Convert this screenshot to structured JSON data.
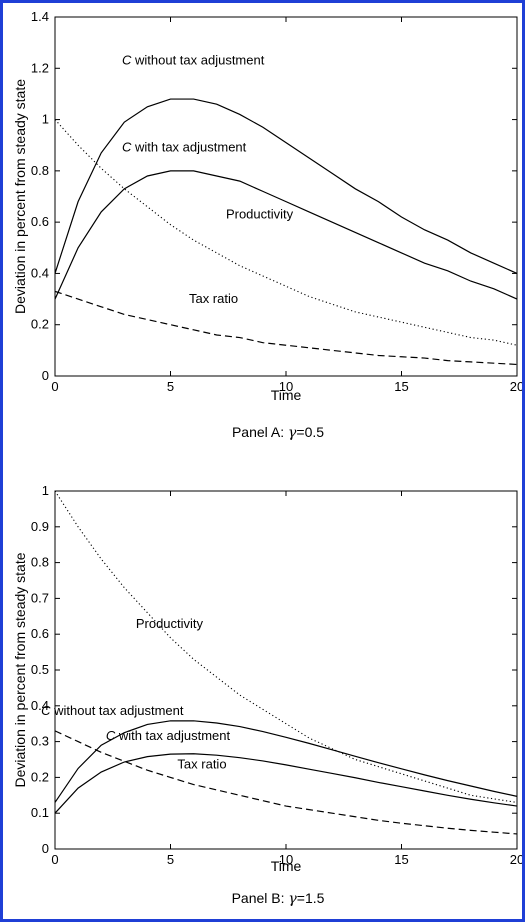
{
  "colors": {
    "frame": "#1f3fd6",
    "line": "#000000",
    "background": "#ffffff"
  },
  "chart_data": [
    {
      "type": "line",
      "panel_label_prefix": "Panel A: ",
      "panel_label_symbol": "γ",
      "panel_label_value": "=0.5",
      "xlabel": "Time",
      "ylabel": "Deviation in percent from steady state",
      "xlim": [
        0,
        20
      ],
      "ylim": [
        0,
        1.4
      ],
      "xticks": [
        0,
        5,
        10,
        15,
        20
      ],
      "yticks": [
        0,
        0.2,
        0.4,
        0.6,
        0.8,
        1,
        1.2,
        1.4
      ],
      "grid": false,
      "x": [
        0,
        1,
        2,
        3,
        4,
        5,
        6,
        7,
        8,
        9,
        10,
        11,
        12,
        13,
        14,
        15,
        16,
        17,
        18,
        19,
        20
      ],
      "series": [
        {
          "id": "c-without",
          "style": "solid",
          "values": [
            0.4,
            0.68,
            0.87,
            0.99,
            1.05,
            1.08,
            1.08,
            1.06,
            1.02,
            0.97,
            0.91,
            0.85,
            0.79,
            0.73,
            0.68,
            0.62,
            0.57,
            0.53,
            0.48,
            0.44,
            0.4
          ]
        },
        {
          "id": "c-with",
          "style": "solid",
          "values": [
            0.3,
            0.5,
            0.64,
            0.73,
            0.78,
            0.8,
            0.8,
            0.78,
            0.76,
            0.72,
            0.68,
            0.64,
            0.6,
            0.56,
            0.52,
            0.48,
            0.44,
            0.41,
            0.37,
            0.34,
            0.3
          ]
        },
        {
          "id": "productivity",
          "style": "dotted",
          "values": [
            1.0,
            0.9,
            0.81,
            0.73,
            0.66,
            0.59,
            0.53,
            0.48,
            0.43,
            0.39,
            0.35,
            0.31,
            0.28,
            0.25,
            0.23,
            0.21,
            0.19,
            0.17,
            0.15,
            0.14,
            0.12
          ]
        },
        {
          "id": "tax-ratio",
          "style": "dashed",
          "values": [
            0.33,
            0.3,
            0.27,
            0.24,
            0.22,
            0.2,
            0.18,
            0.16,
            0.15,
            0.13,
            0.12,
            0.11,
            0.1,
            0.09,
            0.08,
            0.075,
            0.07,
            0.06,
            0.055,
            0.05,
            0.045
          ]
        }
      ],
      "annotations": [
        {
          "id": "c-without",
          "italic": "C",
          "rest": " without tax adjustment",
          "x": 2.9,
          "y": 1.215
        },
        {
          "id": "c-with",
          "italic": "C",
          "rest": " with tax adjustment",
          "x": 2.9,
          "y": 0.875
        },
        {
          "id": "productivity",
          "italic": "",
          "rest": "Productivity",
          "x": 7.4,
          "y": 0.615
        },
        {
          "id": "tax-ratio",
          "italic": "",
          "rest": "Tax ratio",
          "x": 5.8,
          "y": 0.285
        }
      ]
    },
    {
      "type": "line",
      "panel_label_prefix": "Panel B: ",
      "panel_label_symbol": "γ",
      "panel_label_value": "=1.5",
      "xlabel": "Time",
      "ylabel": "Deviation in percent from steady state",
      "xlim": [
        0,
        20
      ],
      "ylim": [
        0,
        1
      ],
      "xticks": [
        0,
        5,
        10,
        15,
        20
      ],
      "yticks": [
        0,
        0.1,
        0.2,
        0.3,
        0.4,
        0.5,
        0.6,
        0.7,
        0.8,
        0.9,
        1
      ],
      "grid": false,
      "x": [
        0,
        1,
        2,
        3,
        4,
        5,
        6,
        7,
        8,
        9,
        10,
        11,
        12,
        13,
        14,
        15,
        16,
        17,
        18,
        19,
        20
      ],
      "series": [
        {
          "id": "c-without",
          "style": "solid",
          "values": [
            0.13,
            0.225,
            0.29,
            0.325,
            0.348,
            0.358,
            0.358,
            0.352,
            0.342,
            0.328,
            0.312,
            0.295,
            0.277,
            0.259,
            0.241,
            0.224,
            0.207,
            0.191,
            0.176,
            0.161,
            0.147
          ]
        },
        {
          "id": "c-with",
          "style": "solid",
          "values": [
            0.1,
            0.17,
            0.215,
            0.243,
            0.258,
            0.265,
            0.266,
            0.262,
            0.255,
            0.246,
            0.235,
            0.223,
            0.211,
            0.199,
            0.186,
            0.174,
            0.162,
            0.15,
            0.139,
            0.129,
            0.12
          ]
        },
        {
          "id": "productivity",
          "style": "dotted",
          "values": [
            1.0,
            0.9,
            0.81,
            0.73,
            0.66,
            0.59,
            0.53,
            0.48,
            0.43,
            0.39,
            0.35,
            0.31,
            0.28,
            0.25,
            0.23,
            0.21,
            0.19,
            0.17,
            0.15,
            0.14,
            0.13
          ]
        },
        {
          "id": "tax-ratio",
          "style": "dashed",
          "values": [
            0.33,
            0.3,
            0.27,
            0.245,
            0.22,
            0.2,
            0.18,
            0.165,
            0.15,
            0.135,
            0.12,
            0.11,
            0.1,
            0.09,
            0.08,
            0.072,
            0.065,
            0.058,
            0.052,
            0.047,
            0.042
          ]
        }
      ],
      "annotations": [
        {
          "id": "productivity",
          "italic": "",
          "rest": "Productivity",
          "x": 3.5,
          "y": 0.617
        },
        {
          "id": "c-without",
          "italic": "C",
          "rest": " without tax adjustment",
          "x": -0.6,
          "y": 0.375
        },
        {
          "id": "c-with",
          "italic": "C",
          "rest": " with tax adjustment",
          "x": 2.2,
          "y": 0.305
        },
        {
          "id": "tax-ratio",
          "italic": "",
          "rest": "Tax ratio",
          "x": 5.3,
          "y": 0.225
        }
      ]
    }
  ]
}
